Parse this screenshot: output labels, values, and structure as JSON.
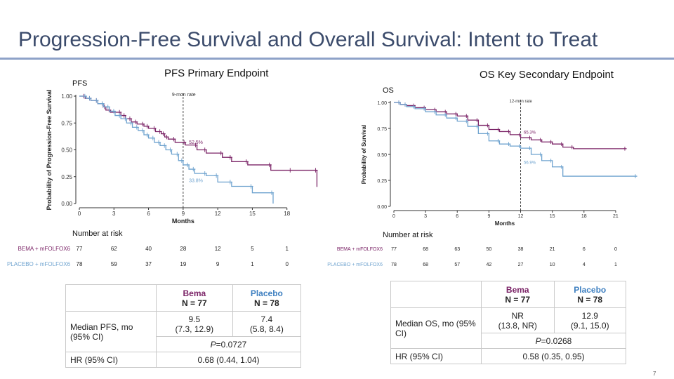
{
  "slide": {
    "title": "Progression-Free Survival and Overall Survival: Intent to Treat",
    "page_number": "7"
  },
  "colors": {
    "bema": "#7b2467",
    "placebo": "#6fa3cf",
    "axis": "#333333"
  },
  "chart_data": [
    {
      "type": "line",
      "id": "pfs",
      "header": "PFS Primary Endpoint",
      "title": "PFS",
      "xlabel": "Months",
      "ylabel": "Probability of Progression-Free Survival",
      "xlim": [
        0,
        21
      ],
      "ylim": [
        0,
        1
      ],
      "x_ticks": [
        0,
        3,
        6,
        9,
        12,
        15,
        18
      ],
      "x_tick_labels": [
        "0",
        "3",
        "6",
        "9",
        "12",
        "15",
        "18"
      ],
      "y_ticks": [
        0,
        0.25,
        0.5,
        0.75,
        1.0
      ],
      "y_tick_labels": [
        "0.00",
        "0.25",
        "0.50",
        "0.75",
        "1.00"
      ],
      "reference_line": {
        "x": 9,
        "label": "9-mon rate"
      },
      "annotations": [
        {
          "series": "bema",
          "x": 9.5,
          "y": 0.555,
          "text": "52.5%"
        },
        {
          "series": "placebo",
          "x": 9.5,
          "y": 0.2,
          "text": "33.8%"
        }
      ],
      "series": [
        {
          "name": "BEMA + mFOLFOX6",
          "color": "#7b2467",
          "x": [
            0,
            0.5,
            1.0,
            1.6,
            2.1,
            2.3,
            2.7,
            3.6,
            4.0,
            4.5,
            5.0,
            5.6,
            6.0,
            6.6,
            7.1,
            7.4,
            7.7,
            8.3,
            9.2,
            10.2,
            11.0,
            12.4,
            13.2,
            14.6,
            16.6,
            18.4,
            20.6
          ],
          "y": [
            1.0,
            0.98,
            0.96,
            0.93,
            0.9,
            0.87,
            0.85,
            0.82,
            0.79,
            0.76,
            0.74,
            0.72,
            0.7,
            0.67,
            0.65,
            0.62,
            0.6,
            0.57,
            0.545,
            0.5,
            0.47,
            0.43,
            0.39,
            0.36,
            0.31,
            0.31,
            0.155
          ]
        },
        {
          "name": "PLACEBO + mFOLFOX6",
          "color": "#6fa3cf",
          "x": [
            0,
            0.6,
            1.0,
            1.6,
            2.1,
            2.6,
            3.1,
            3.6,
            4.1,
            4.6,
            5.1,
            5.6,
            6.0,
            6.5,
            7.0,
            7.5,
            8.0,
            8.6,
            9.0,
            9.5,
            10.0,
            11.0,
            12.0,
            13.2,
            15.0,
            16.8
          ],
          "y": [
            1.0,
            0.98,
            0.96,
            0.93,
            0.9,
            0.86,
            0.82,
            0.79,
            0.75,
            0.71,
            0.68,
            0.64,
            0.61,
            0.57,
            0.54,
            0.5,
            0.46,
            0.4,
            0.36,
            0.32,
            0.28,
            0.26,
            0.2,
            0.16,
            0.1,
            0.0
          ]
        }
      ],
      "risk_table": {
        "title": "Number at risk",
        "time_points": [
          0,
          3,
          6,
          9,
          12,
          15,
          18
        ],
        "rows": [
          {
            "label": "BEMA + mFOLFOX6",
            "values": [
              "77",
              "62",
              "40",
              "28",
              "12",
              "5",
              "1"
            ]
          },
          {
            "label": "PLACEBO + mFOLFOX6",
            "values": [
              "78",
              "59",
              "37",
              "19",
              "9",
              "1",
              "0"
            ]
          }
        ]
      }
    },
    {
      "type": "line",
      "id": "os",
      "header": "OS Key Secondary Endpoint",
      "title": "OS",
      "xlabel": "Months",
      "ylabel": "Probability of Survival",
      "xlim": [
        0,
        23
      ],
      "ylim": [
        0,
        1
      ],
      "x_ticks": [
        0,
        3,
        6,
        9,
        12,
        15,
        18,
        21
      ],
      "x_tick_labels": [
        "0",
        "3",
        "6",
        "9",
        "12",
        "15",
        "18",
        "21"
      ],
      "y_ticks": [
        0,
        0.25,
        0.5,
        0.75,
        1.0
      ],
      "y_tick_labels": [
        "0.00",
        "0.25",
        "0.50",
        "0.75",
        "1.00"
      ],
      "reference_line": {
        "x": 12,
        "label": "12-mon rate"
      },
      "annotations": [
        {
          "series": "bema",
          "x": 12.3,
          "y": 0.7,
          "text": "65.3%"
        },
        {
          "series": "placebo",
          "x": 12.3,
          "y": 0.41,
          "text": "56.9%"
        }
      ],
      "series": [
        {
          "name": "BEMA + mFOLFOX6",
          "color": "#7b2467",
          "x": [
            0,
            0.6,
            1.2,
            2.0,
            3.0,
            4.0,
            5.0,
            6.0,
            7.0,
            8.0,
            9.0,
            10.0,
            11.0,
            12.0,
            13.0,
            14.0,
            15.0,
            16.0,
            17.0,
            22.0
          ],
          "y": [
            1.0,
            0.98,
            0.97,
            0.95,
            0.93,
            0.91,
            0.89,
            0.87,
            0.83,
            0.78,
            0.74,
            0.72,
            0.69,
            0.66,
            0.64,
            0.62,
            0.6,
            0.57,
            0.555,
            0.555
          ]
        },
        {
          "name": "PLACEBO + mFOLFOX6",
          "color": "#6fa3cf",
          "x": [
            0,
            0.6,
            1.2,
            2.0,
            3.0,
            4.0,
            5.0,
            6.0,
            7.0,
            8.0,
            9.0,
            10.0,
            11.0,
            12.0,
            13.0,
            14.0,
            15.0,
            16.0,
            23.0
          ],
          "y": [
            1.0,
            0.98,
            0.96,
            0.94,
            0.91,
            0.88,
            0.85,
            0.82,
            0.77,
            0.7,
            0.63,
            0.6,
            0.58,
            0.56,
            0.5,
            0.44,
            0.38,
            0.29,
            0.29
          ]
        }
      ],
      "risk_table": {
        "title": "Number at risk",
        "time_points": [
          0,
          3,
          6,
          9,
          12,
          15,
          18,
          21
        ],
        "rows": [
          {
            "label": "BEMA + mFOLFOX6",
            "values": [
              "77",
              "68",
              "63",
              "50",
              "38",
              "21",
              "6",
              "0"
            ]
          },
          {
            "label": "PLACEBO + mFOLFOX6",
            "values": [
              "78",
              "68",
              "57",
              "42",
              "27",
              "10",
              "4",
              "1"
            ]
          }
        ]
      }
    }
  ],
  "pfs_table": {
    "bema_head": "Bema",
    "bema_n": "N = 77",
    "placebo_head": "Placebo",
    "placebo_n": "N = 78",
    "median_label": "Median PFS, mo (95% CI)",
    "bema_median": "9.5",
    "bema_ci": "(7.3, 12.9)",
    "placebo_median": "7.4",
    "placebo_ci": "(5.8, 8.4)",
    "p_prefix": "P",
    "p_value": "=0.0727",
    "hr_label": "HR (95% CI)",
    "hr_value": "0.68 (0.44, 1.04)"
  },
  "os_table": {
    "bema_head": "Bema",
    "bema_n": "N = 77",
    "placebo_head": "Placebo",
    "placebo_n": "N = 78",
    "median_label": "Median OS, mo (95% CI)",
    "bema_median": "NR",
    "bema_ci": "(13.8, NR)",
    "placebo_median": "12.9",
    "placebo_ci": "(9.1, 15.0)",
    "p_prefix": "P",
    "p_value": "=0.0268",
    "hr_label": "HR (95% CI)",
    "hr_value": "0.58 (0.35, 0.95)"
  }
}
